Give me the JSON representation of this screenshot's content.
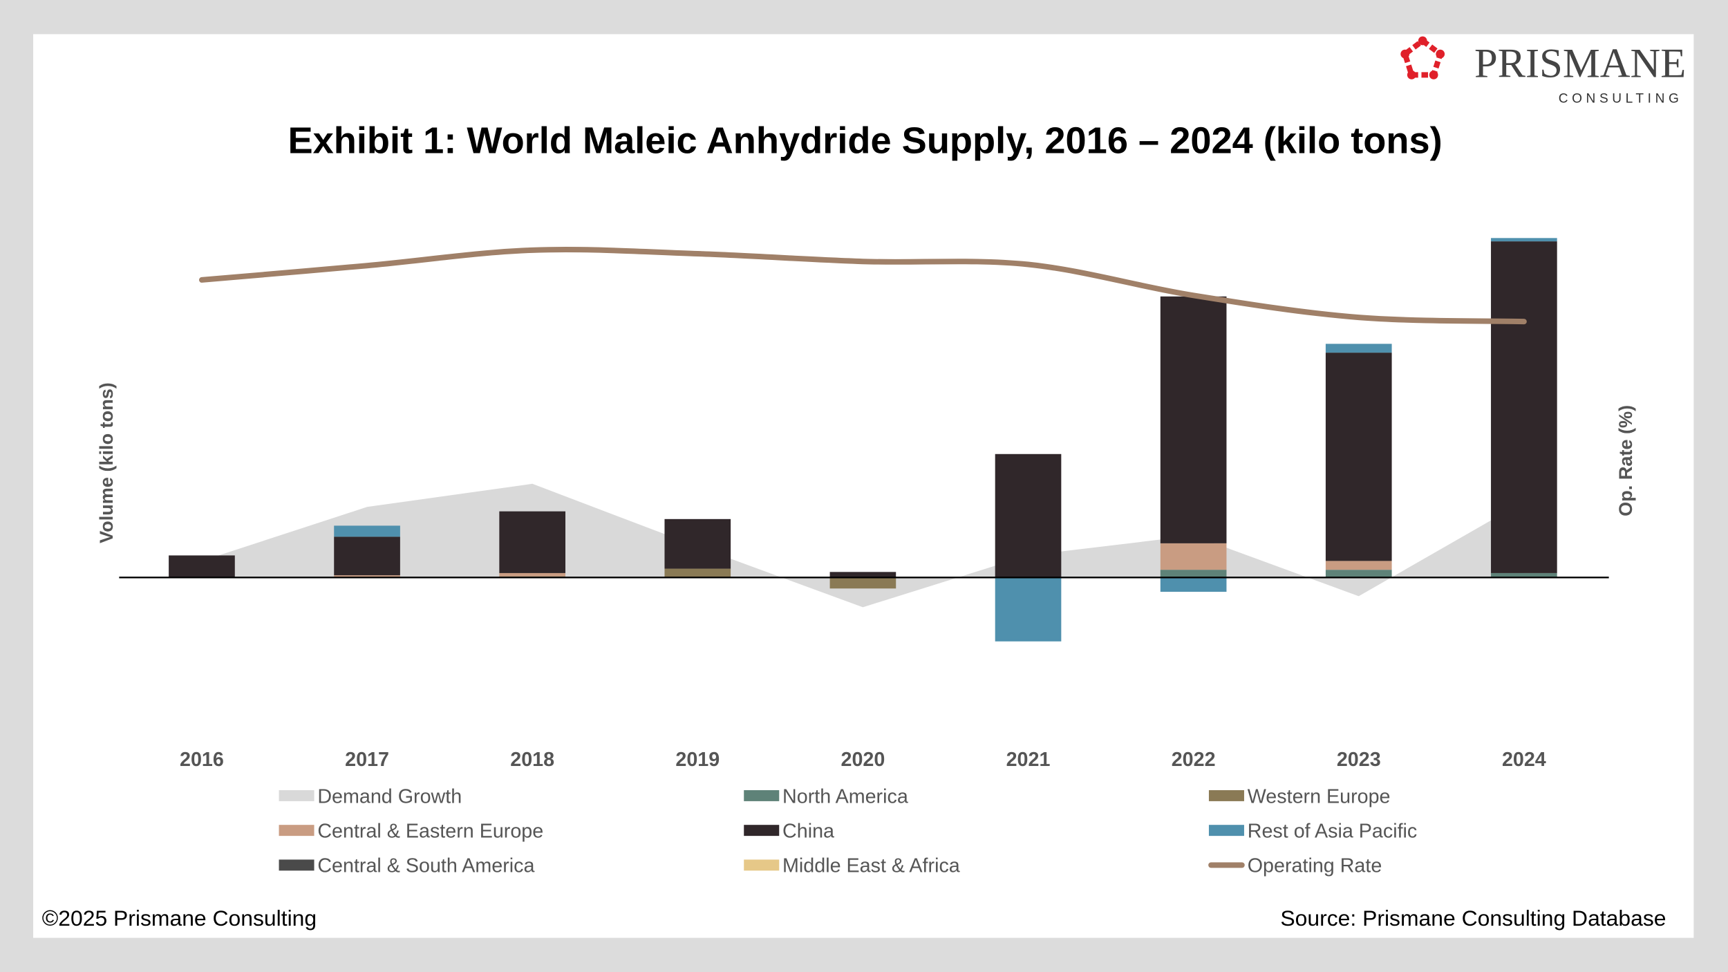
{
  "logo": {
    "name": "PRISMANE",
    "tagline": "CONSULTING",
    "color": "#e0202a"
  },
  "footer": {
    "copyright": "©2025 Prismane Consulting",
    "source": "Source: Prismane Consulting Database"
  },
  "chart_data": {
    "type": "bar",
    "title": "Exhibit 1: World Maleic Anhydride Supply, 2016 – 2024 (kilo tons)",
    "ylabel": "Volume (kilo tons)",
    "y2label": "Op. Rate (%)",
    "stacked": true,
    "grid": false,
    "legend_position": "bottom",
    "ylim": [
      -160,
      330
    ],
    "y2lim": [
      61,
      99
    ],
    "categories": [
      "2016",
      "2017",
      "2018",
      "2019",
      "2020",
      "2021",
      "2022",
      "2023",
      "2024"
    ],
    "area": {
      "name": "Demand Growth",
      "color": "#d9d9d9",
      "values": [
        15,
        64,
        85,
        28,
        -27,
        20,
        38,
        -17,
        69
      ]
    },
    "series": [
      {
        "name": "North America",
        "color": "#5e8278",
        "values": [
          0,
          0,
          0,
          0,
          0,
          0,
          7,
          7,
          4
        ]
      },
      {
        "name": "Western Europe",
        "color": "#8a7a55",
        "values": [
          0,
          0,
          1,
          8,
          -10,
          0,
          0,
          0,
          0
        ]
      },
      {
        "name": "Central & Eastern Europe",
        "color": "#c99c82",
        "values": [
          0,
          2,
          3,
          0,
          0,
          0,
          24,
          8,
          0
        ]
      },
      {
        "name": "China",
        "color": "#30272a",
        "values": [
          20,
          35,
          56,
          45,
          5,
          112,
          224,
          189,
          301
        ]
      },
      {
        "name": "Rest of Asia Pacific",
        "color": "#4f90ad",
        "values": [
          0,
          10,
          0,
          0,
          0,
          -58,
          -13,
          8,
          3
        ]
      },
      {
        "name": "Central & South America",
        "color": "#4a4a4a",
        "values": [
          0,
          0,
          0,
          0,
          0,
          0,
          0,
          0,
          0
        ]
      },
      {
        "name": "Middle East & Africa",
        "color": "#e6c888",
        "values": [
          0,
          0,
          0,
          0,
          0,
          0,
          0,
          0,
          0
        ]
      }
    ],
    "line": {
      "name": "Operating Rate",
      "color": "#a08068",
      "values": [
        80,
        82.4,
        85,
        84.4,
        83.1,
        82.6,
        77.4,
        73.7,
        73
      ]
    },
    "legend": [
      "Demand Growth",
      "North America",
      "Western Europe",
      "Central & Eastern Europe",
      "China",
      "Rest of Asia Pacific",
      "Central & South America",
      "Middle East & Africa",
      "Operating Rate"
    ]
  }
}
